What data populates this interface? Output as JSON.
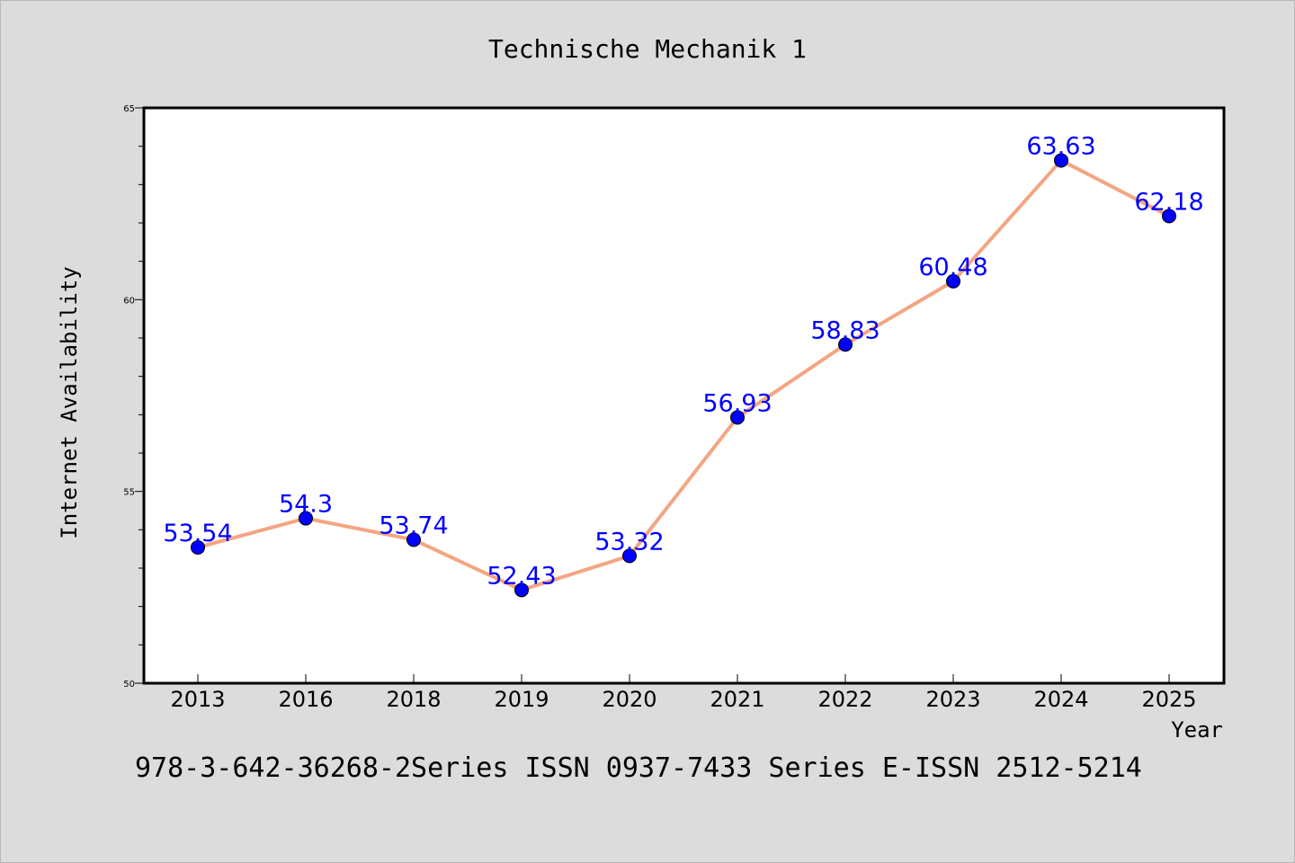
{
  "chart_data": {
    "type": "line",
    "title": "Technische Mechanik 1",
    "xlabel": "Year",
    "ylabel": "Internet Availability",
    "categories": [
      "2013",
      "2016",
      "2018",
      "2019",
      "2020",
      "2021",
      "2022",
      "2023",
      "2024",
      "2025"
    ],
    "series": [
      {
        "values": [
          53.54,
          54.3,
          53.74,
          52.43,
          53.32,
          56.93,
          58.83,
          60.48,
          63.63,
          62.18
        ],
        "data_labels": [
          "53.54",
          "54.3",
          "53.74",
          "52.43",
          "53.32",
          "56.93",
          "58.83",
          "60.48",
          "63.63",
          "62.18"
        ]
      }
    ],
    "ylim": [
      50,
      65
    ],
    "yticks": [
      "50",
      "55",
      "60",
      "65"
    ],
    "grid": false,
    "colors": {
      "line": "#f4a582",
      "marker": "#0000ff",
      "data_label": "#0000ff",
      "background": "#dcdcdc",
      "plot_background": "#ffffff"
    }
  },
  "footer": "978-3-642-36268-2Series ISSN 0937-7433 Series E-ISSN 2512-5214"
}
